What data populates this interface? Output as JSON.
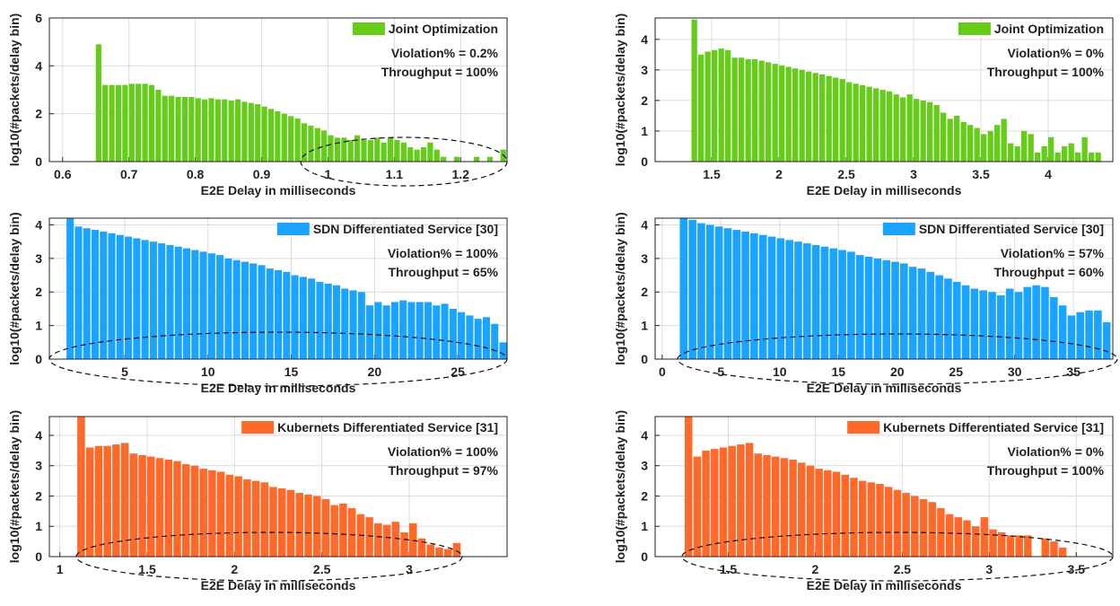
{
  "chart_data": [
    {
      "type": "histogram",
      "xlabel": "E2E Delay in milliseconds",
      "ylabel": "log10(#packets/delay bin)",
      "xlim": [
        0.58,
        1.27
      ],
      "ylim": [
        0,
        6
      ],
      "xticks": [
        0.6,
        0.7,
        0.8,
        0.9,
        1,
        1.1,
        1.2
      ],
      "yticks": [
        0,
        2,
        4,
        6
      ],
      "grid": true,
      "annotations": [
        "Violation% = 0.2%",
        "Throughput = 100%"
      ],
      "bins": [
        0.65,
        0.66,
        0.67,
        0.68,
        0.69,
        0.7,
        0.71,
        0.72,
        0.73,
        0.74,
        0.75,
        0.76,
        0.77,
        0.78,
        0.79,
        0.8,
        0.81,
        0.82,
        0.83,
        0.84,
        0.85,
        0.86,
        0.87,
        0.88,
        0.89,
        0.9,
        0.91,
        0.92,
        0.93,
        0.94,
        0.95,
        0.96,
        0.97,
        0.98,
        0.99,
        1,
        1.01,
        1.02,
        1.03,
        1.04,
        1.05,
        1.06,
        1.07,
        1.08,
        1.09,
        1.1,
        1.11,
        1.12,
        1.13,
        1.14,
        1.15,
        1.16,
        1.17,
        1.18,
        1.19,
        1.2,
        1.21,
        1.22,
        1.23,
        1.24,
        1.25,
        1.26,
        1.27
      ],
      "series": [
        {
          "name": "Joint Optimization",
          "color": "#66cc1a",
          "values": [
            4.9,
            3.2,
            3.2,
            3.2,
            3.2,
            3.25,
            3.25,
            3.25,
            3.2,
            3.0,
            2.75,
            2.75,
            2.7,
            2.7,
            2.7,
            2.65,
            2.6,
            2.65,
            2.6,
            2.6,
            2.55,
            2.6,
            2.5,
            2.45,
            2.4,
            2.3,
            2.2,
            2.1,
            2.0,
            1.9,
            1.8,
            1.6,
            1.5,
            1.4,
            1.3,
            1.1,
            1.0,
            1.0,
            0.9,
            1.1,
            0.9,
            0.9,
            1.0,
            0.8,
            1.0,
            0.9,
            0.8,
            0.6,
            0.5,
            0.6,
            0.8,
            0.5,
            0.2,
            null,
            0.2,
            null,
            null,
            0.2,
            null,
            0.2,
            null,
            0.5
          ]
        }
      ]
    },
    {
      "type": "histogram",
      "xlabel": "E2E Delay in milliseconds",
      "ylabel": "log10(#packets/delay bin)",
      "xlim": [
        1.08,
        4.48
      ],
      "ylim": [
        0,
        4.7
      ],
      "xticks": [
        1.5,
        2,
        2.5,
        3,
        3.5,
        4
      ],
      "yticks": [
        0,
        1,
        2,
        3,
        4
      ],
      "grid": true,
      "annotations": [
        "Violation% = 0%",
        "Throughput = 100%"
      ],
      "bins": [
        1.35,
        1.4,
        1.45,
        1.5,
        1.55,
        1.6,
        1.65,
        1.7,
        1.75,
        1.8,
        1.85,
        1.9,
        1.95,
        2,
        2.05,
        2.1,
        2.15,
        2.2,
        2.25,
        2.3,
        2.35,
        2.4,
        2.45,
        2.5,
        2.55,
        2.6,
        2.65,
        2.7,
        2.75,
        2.8,
        2.85,
        2.9,
        2.95,
        3,
        3.05,
        3.1,
        3.15,
        3.2,
        3.25,
        3.3,
        3.35,
        3.4,
        3.45,
        3.5,
        3.55,
        3.6,
        3.65,
        3.7,
        3.75,
        3.8,
        3.85,
        3.9,
        3.95,
        4,
        4.05,
        4.1,
        4.15,
        4.2,
        4.25,
        4.3,
        4.35,
        4.4
      ],
      "series": [
        {
          "name": "Joint Optimization",
          "color": "#66cc1a",
          "values": [
            4.65,
            3.5,
            3.6,
            3.65,
            3.7,
            3.65,
            3.4,
            3.4,
            3.35,
            3.35,
            3.3,
            3.25,
            3.2,
            3.15,
            3.1,
            3.05,
            3.0,
            2.95,
            2.9,
            2.85,
            2.8,
            2.75,
            2.7,
            2.6,
            2.55,
            2.5,
            2.45,
            2.4,
            2.35,
            2.3,
            2.2,
            2.1,
            2.2,
            2.05,
            2.0,
            1.95,
            1.85,
            1.6,
            1.4,
            1.5,
            1.3,
            1.2,
            1.1,
            0.9,
            1.0,
            1.2,
            1.4,
            0.6,
            0.5,
            1.0,
            0.9,
            0.3,
            0.5,
            0.8,
            0.3,
            0.5,
            0.6,
            0.3,
            0.8,
            0.3,
            0.3
          ]
        }
      ]
    },
    {
      "type": "histogram",
      "xlabel": "E2E Delay in milliseconds",
      "ylabel": "log10(#packets/delay bin)",
      "xlim": [
        0.47,
        27.96
      ],
      "ylim": [
        0,
        4.2
      ],
      "xticks": [
        5,
        10,
        15,
        20,
        25
      ],
      "yticks": [
        0,
        1,
        2,
        3,
        4
      ],
      "grid": true,
      "annotations": [
        "Violation% = 100%",
        "Throughput = 65%"
      ],
      "bins": [
        1.5,
        2,
        2.5,
        3,
        3.5,
        4,
        4.5,
        5,
        5.5,
        6,
        6.5,
        7,
        7.5,
        8,
        8.5,
        9,
        9.5,
        10,
        10.5,
        11,
        11.5,
        12,
        12.5,
        13,
        13.5,
        14,
        14.5,
        15,
        15.5,
        16,
        16.5,
        17,
        17.5,
        18,
        18.5,
        19,
        19.5,
        20,
        20.5,
        21,
        21.5,
        22,
        22.5,
        23,
        23.5,
        24,
        24.5,
        25,
        25.5,
        26,
        26.5,
        27,
        27.5,
        28
      ],
      "series": [
        {
          "name": "SDN Differentiated Service [30]",
          "color": "#1aa3ff",
          "values": [
            4.2,
            3.95,
            3.9,
            3.85,
            3.8,
            3.75,
            3.7,
            3.65,
            3.6,
            3.55,
            3.5,
            3.45,
            3.4,
            3.35,
            3.3,
            3.25,
            3.2,
            3.15,
            3.1,
            3.0,
            2.95,
            2.9,
            2.85,
            2.8,
            2.7,
            2.65,
            2.6,
            2.5,
            2.45,
            2.4,
            2.3,
            2.25,
            2.2,
            2.1,
            2.05,
            2.0,
            1.6,
            1.7,
            1.6,
            1.7,
            1.75,
            1.7,
            1.7,
            1.7,
            1.6,
            1.65,
            1.5,
            1.4,
            1.3,
            1.2,
            1.25,
            1.05,
            0.5
          ]
        }
      ]
    },
    {
      "type": "histogram",
      "xlabel": "E2E Delay in milliseconds",
      "ylabel": "log10(#packets/delay bin)",
      "xlim": [
        -0.6,
        38.35
      ],
      "ylim": [
        0,
        4.2
      ],
      "xticks": [
        0,
        5,
        10,
        15,
        20,
        25,
        30,
        35
      ],
      "yticks": [
        0,
        1,
        2,
        3,
        4
      ],
      "grid": true,
      "annotations": [
        "Violation% = 57%",
        "Throughput = 60%"
      ],
      "bins": [
        1.5,
        2.25,
        3,
        3.75,
        4.5,
        5.25,
        6,
        6.75,
        7.5,
        8.25,
        9,
        9.75,
        10.5,
        11.25,
        12,
        12.75,
        13.5,
        14.25,
        15,
        15.75,
        16.5,
        17.25,
        18,
        18.75,
        19.5,
        20.25,
        21,
        21.75,
        22.5,
        23.25,
        24,
        24.75,
        25.5,
        26.25,
        27,
        27.75,
        28.5,
        29.25,
        30,
        30.75,
        31.5,
        32.25,
        33,
        33.75,
        34.5,
        35.25,
        36,
        36.75,
        37.5,
        38.25
      ],
      "series": [
        {
          "name": "SDN Differentiated Service [30]",
          "color": "#1aa3ff",
          "values": [
            4.2,
            4.15,
            4.05,
            4.0,
            3.95,
            3.9,
            3.85,
            3.8,
            3.75,
            3.7,
            3.65,
            3.6,
            3.55,
            3.5,
            3.45,
            3.4,
            3.35,
            3.3,
            3.25,
            3.2,
            3.1,
            3.05,
            3.0,
            2.95,
            2.9,
            2.85,
            2.75,
            2.7,
            2.6,
            2.5,
            2.4,
            2.3,
            2.2,
            2.1,
            2.05,
            2.0,
            1.9,
            2.1,
            2.0,
            2.15,
            2.2,
            2.15,
            1.85,
            1.6,
            1.3,
            1.4,
            1.45,
            1.45,
            1.1
          ]
        }
      ]
    },
    {
      "type": "histogram",
      "xlabel": "E2E Delay in milliseconds",
      "ylabel": "log10(#packets/delay bin)",
      "xlim": [
        0.94,
        3.56
      ],
      "ylim": [
        0,
        4.62
      ],
      "xticks": [
        1,
        1.5,
        2,
        2.5,
        3
      ],
      "yticks": [
        0,
        1,
        2,
        3,
        4
      ],
      "grid": true,
      "annotations": [
        "Violation% = 100%",
        "Throughput = 97%"
      ],
      "bins": [
        1.1,
        1.15,
        1.2,
        1.25,
        1.3,
        1.35,
        1.4,
        1.45,
        1.5,
        1.55,
        1.6,
        1.65,
        1.7,
        1.75,
        1.8,
        1.85,
        1.9,
        1.95,
        2,
        2.05,
        2.1,
        2.15,
        2.2,
        2.25,
        2.3,
        2.35,
        2.4,
        2.45,
        2.5,
        2.55,
        2.6,
        2.65,
        2.7,
        2.75,
        2.8,
        2.85,
        2.9,
        2.95,
        3,
        3.05,
        3.1,
        3.15,
        3.2,
        3.25,
        3.3
      ],
      "series": [
        {
          "name": "Kubernets Differentiated Service [31]",
          "color": "#ff6a2a",
          "values": [
            4.7,
            3.6,
            3.65,
            3.65,
            3.7,
            3.75,
            3.4,
            3.35,
            3.3,
            3.25,
            3.2,
            3.15,
            3.05,
            3.0,
            2.9,
            2.85,
            2.8,
            2.7,
            2.65,
            2.55,
            2.5,
            2.45,
            2.3,
            2.25,
            2.2,
            2.1,
            2.05,
            2.0,
            1.9,
            1.7,
            1.75,
            1.6,
            1.4,
            1.3,
            1.1,
            1.05,
            1.15,
            0.8,
            1.1,
            0.6,
            0.4,
            0.3,
            0.25,
            0.45
          ]
        }
      ]
    },
    {
      "type": "histogram",
      "xlabel": "E2E Delay in milliseconds",
      "ylabel": "log10(#packets/delay bin)",
      "xlim": [
        1.08,
        3.71
      ],
      "ylim": [
        0,
        4.62
      ],
      "xticks": [
        1.5,
        2,
        2.5,
        3,
        3.5
      ],
      "yticks": [
        0,
        1,
        2,
        3,
        4
      ],
      "grid": true,
      "annotations": [
        "Violation% = 0%",
        "Throughput = 100%"
      ],
      "bins": [
        1.25,
        1.3,
        1.35,
        1.4,
        1.45,
        1.5,
        1.55,
        1.6,
        1.65,
        1.7,
        1.75,
        1.8,
        1.85,
        1.9,
        1.95,
        2,
        2.05,
        2.1,
        2.15,
        2.2,
        2.25,
        2.3,
        2.35,
        2.4,
        2.45,
        2.5,
        2.55,
        2.6,
        2.65,
        2.7,
        2.75,
        2.8,
        2.85,
        2.9,
        2.95,
        3,
        3.05,
        3.1,
        3.15,
        3.2,
        3.25,
        3.3,
        3.35,
        3.4,
        3.45
      ],
      "series": [
        {
          "name": "Kubernets Differentiated Service [31]",
          "color": "#ff6a2a",
          "values": [
            4.7,
            3.3,
            3.5,
            3.55,
            3.6,
            3.65,
            3.7,
            3.75,
            3.4,
            3.35,
            3.3,
            3.25,
            3.2,
            3.1,
            3.0,
            2.9,
            2.85,
            2.8,
            2.7,
            2.6,
            2.5,
            2.45,
            2.4,
            2.3,
            2.2,
            2.1,
            2.0,
            1.9,
            1.8,
            1.6,
            1.4,
            1.3,
            1.2,
            1.0,
            1.3,
            0.9,
            0.8,
            0.7,
            0.7,
            0.7,
            null,
            0.6,
            0.5,
            0.3
          ]
        }
      ]
    }
  ]
}
